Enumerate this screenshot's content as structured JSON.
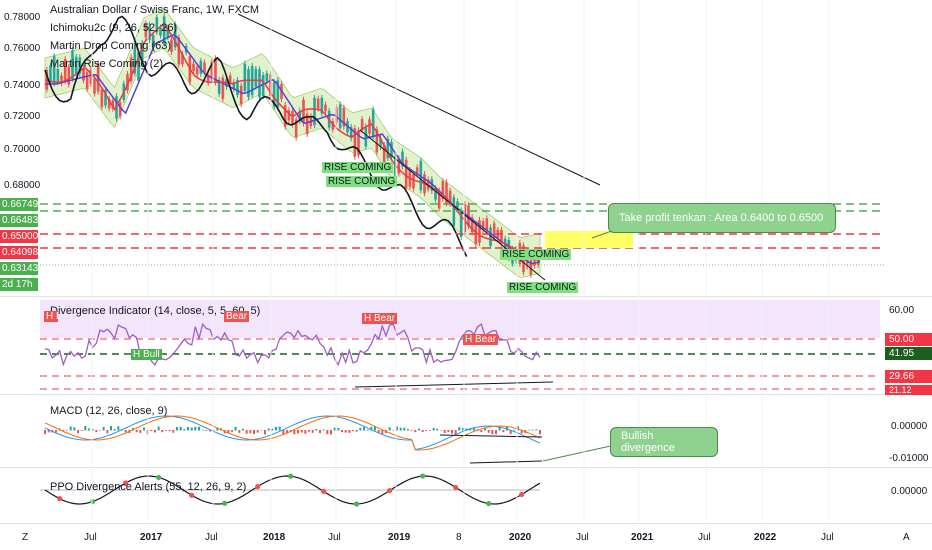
{
  "symbol_title": "Australian Dollar / Swiss Franc, 1W, FXCM",
  "indicators_main": [
    "Ichimoku2c (9, 26, 52, 26)",
    "Martin Drop Coming (63)",
    "Martin Rise Coming (2)"
  ],
  "price_axis": [
    "0.78000",
    "0.76000",
    "0.74000",
    "0.72000",
    "0.70000",
    "0.68000"
  ],
  "price_pills": [
    {
      "text": "0.66749",
      "color": "#4caf50"
    },
    {
      "text": "0.66483",
      "color": "#4caf50"
    },
    {
      "text": "0.65000",
      "color": "#f23645"
    },
    {
      "text": "0.64098",
      "color": "#f23645"
    },
    {
      "text": "0.63143",
      "color": "#4caf50"
    },
    {
      "text": "2d 17h",
      "color": "#4caf50"
    }
  ],
  "rise_labels": [
    "RISE COMING",
    "RISE COMING",
    "RISE COMING",
    "RISE COMING"
  ],
  "take_profit_callout": "Take profit tenkan : Area 0.6400 to 0.6500",
  "divergence_indicator": {
    "title": "Divergence Indicator (14, close, 5, 5, 60, 5)",
    "axis": [
      "60.00",
      "50.00",
      "41.95",
      "29.66",
      "21.12"
    ],
    "tags": [
      "H Bear",
      "Bear",
      "H Bull",
      "H Bear",
      "H Bear"
    ]
  },
  "macd": {
    "title": "MACD (12, 26, close, 9)",
    "axis": [
      "0.00000",
      "-0.01000"
    ],
    "callout": "Bullish divergence"
  },
  "ppo": {
    "title": "PPO Divergence Alerts (55, 12, 26, 9, 2)",
    "axis": [
      "0.00000"
    ]
  },
  "time_axis": [
    "Jul",
    "2017",
    "Jul",
    "2018",
    "Jul",
    "2019",
    "8",
    "2020",
    "Jul",
    "2021",
    "Jul",
    "2022",
    "Jul"
  ],
  "corner_left": "Z",
  "corner_right": "A",
  "colors": {
    "bull": "#26a69a",
    "bear": "#ef5350",
    "tenkan": "#f23645",
    "kijun": "#5b3fd4",
    "cloud": "#c8e6a0",
    "rsi": "#9c5fc7",
    "rsi_band": "#f3e5fb"
  }
}
